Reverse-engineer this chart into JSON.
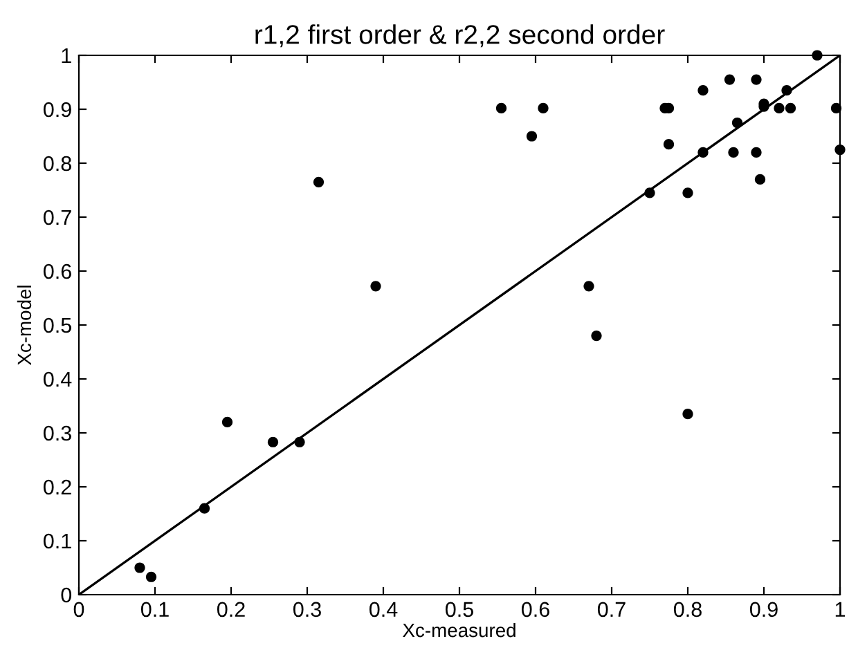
{
  "chart_data": {
    "type": "scatter",
    "title": "r1,2 first order & r2,2 second order",
    "xlabel": "Xc-measured",
    "ylabel": "Xc-model",
    "xlim": [
      0,
      1
    ],
    "ylim": [
      0,
      1
    ],
    "xticks": [
      0,
      0.1,
      0.2,
      0.3,
      0.4,
      0.5,
      0.6,
      0.7,
      0.8,
      0.9,
      1
    ],
    "yticks": [
      0,
      0.1,
      0.2,
      0.3,
      0.4,
      0.5,
      0.6,
      0.7,
      0.8,
      0.9,
      1
    ],
    "grid": false,
    "legend": false,
    "series": [
      {
        "color": "#000000",
        "marker": "circle",
        "x": [
          0.08,
          0.095,
          0.165,
          0.195,
          0.255,
          0.29,
          0.315,
          0.39,
          0.555,
          0.595,
          0.61,
          0.67,
          0.68,
          0.75,
          0.77,
          0.775,
          0.775,
          0.8,
          0.8,
          0.82,
          0.82,
          0.855,
          0.86,
          0.865,
          0.89,
          0.89,
          0.895,
          0.9,
          0.9,
          0.92,
          0.93,
          0.935,
          0.97,
          0.995,
          1.0
        ],
        "values": [
          0.05,
          0.033,
          0.16,
          0.32,
          0.283,
          0.283,
          0.765,
          0.572,
          0.902,
          0.85,
          0.902,
          0.572,
          0.48,
          0.745,
          0.902,
          0.902,
          0.835,
          0.745,
          0.335,
          0.935,
          0.82,
          0.955,
          0.82,
          0.875,
          0.955,
          0.82,
          0.77,
          0.905,
          0.91,
          0.902,
          0.935,
          0.902,
          1.0,
          0.902,
          0.825
        ]
      },
      {
        "type": "line",
        "color": "#000000",
        "marker": "none",
        "line_style": "solid",
        "x": [
          0,
          1
        ],
        "values": [
          0,
          1
        ]
      }
    ]
  }
}
